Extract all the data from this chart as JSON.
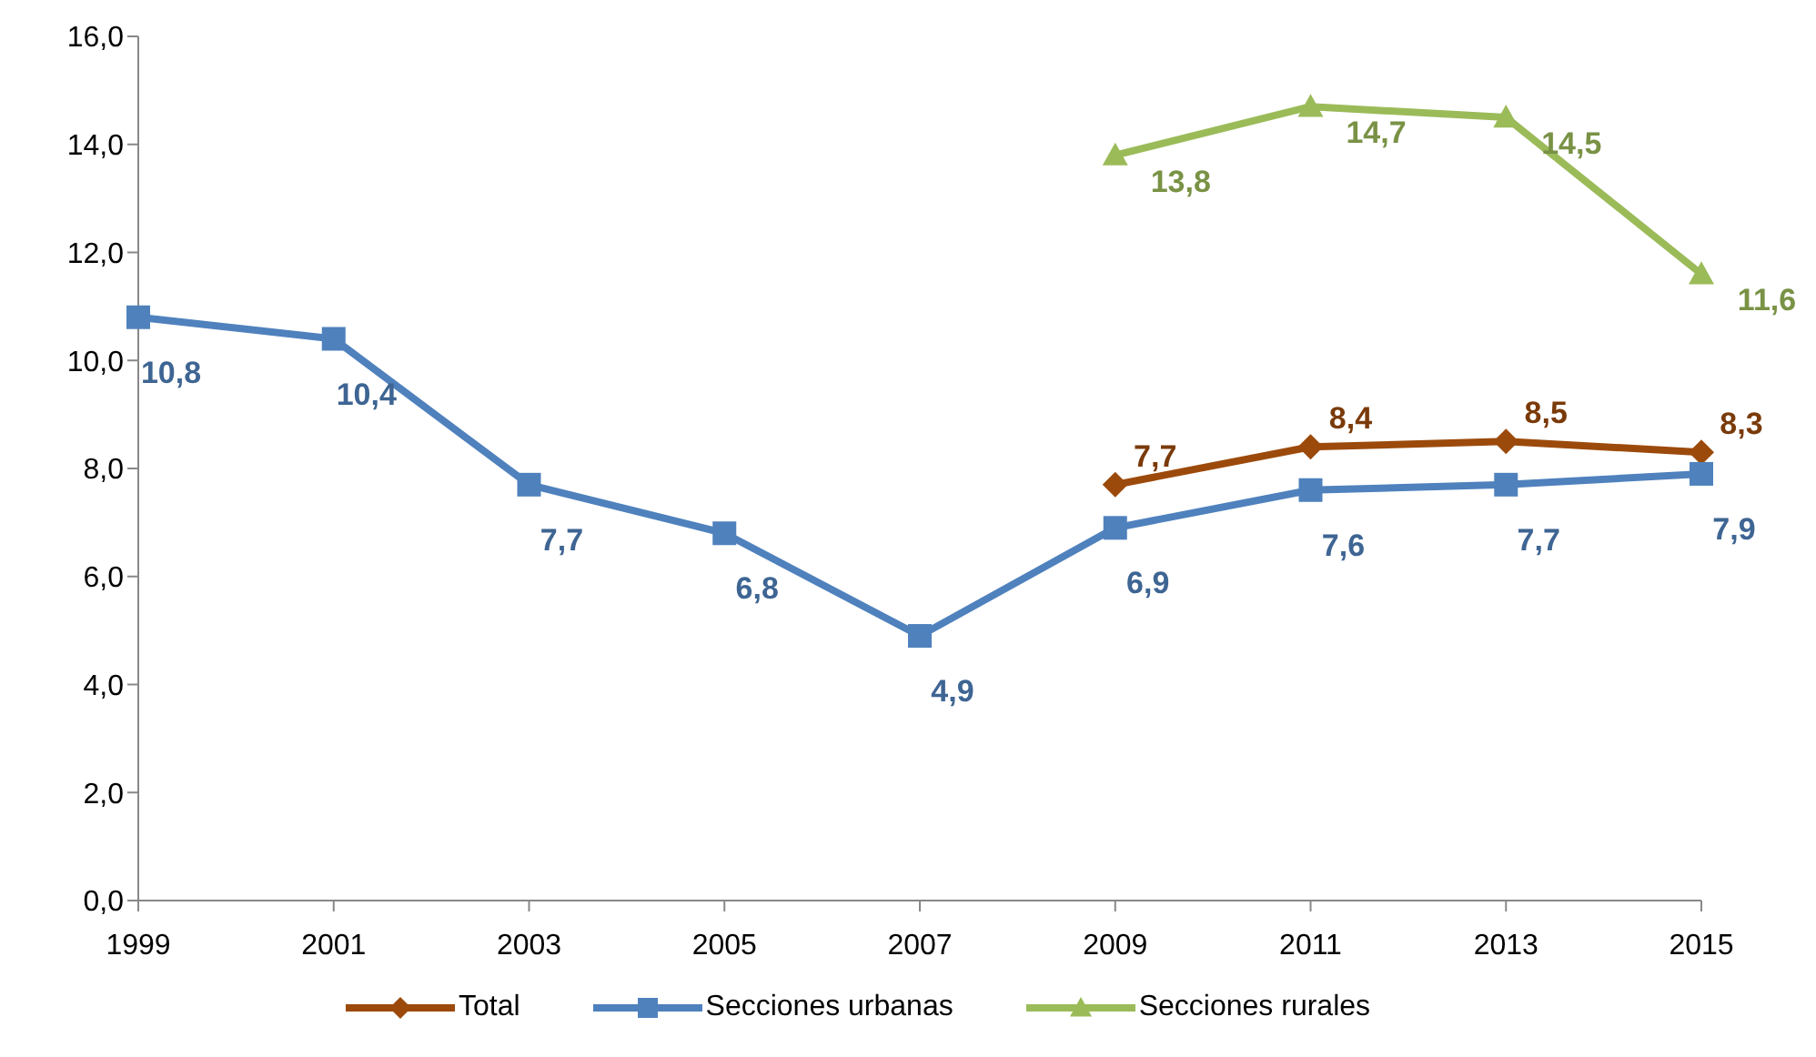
{
  "chart_data": {
    "type": "line",
    "categories": [
      "1999",
      "2001",
      "2003",
      "2005",
      "2007",
      "2009",
      "2011",
      "2013",
      "2015"
    ],
    "ylim": [
      0,
      16
    ],
    "yticks": [
      {
        "value": 0,
        "label": "0,0"
      },
      {
        "value": 2,
        "label": "2,0"
      },
      {
        "value": 4,
        "label": "4,0"
      },
      {
        "value": 6,
        "label": "6,0"
      },
      {
        "value": 8,
        "label": "8,0"
      },
      {
        "value": 10,
        "label": "10,0"
      },
      {
        "value": 12,
        "label": "12,0"
      },
      {
        "value": 14,
        "label": "14,0"
      },
      {
        "value": 16,
        "label": "16,0"
      }
    ],
    "grid": false,
    "legend": "bottom",
    "line_style": "solid",
    "series": [
      {
        "name": "Total",
        "color": "#9c4a0b",
        "marker": "diamond",
        "values": [
          null,
          null,
          null,
          null,
          null,
          7.7,
          8.4,
          8.5,
          8.3
        ],
        "value_labels": [
          null,
          null,
          null,
          null,
          null,
          "7,7",
          "8,4",
          "8,5",
          "8,3"
        ]
      },
      {
        "name": "Secciones urbanas",
        "color": "#4f81bd",
        "marker": "square",
        "values": [
          10.8,
          10.4,
          7.7,
          6.8,
          4.9,
          6.9,
          7.6,
          7.7,
          7.9
        ],
        "value_labels": [
          "10,8",
          "10,4",
          "7,7",
          "6,8",
          "4,9",
          "6,9",
          "7,6",
          "7,7",
          "7,9"
        ]
      },
      {
        "name": "Secciones rurales",
        "color": "#9bbb59",
        "marker": "triangle",
        "values": [
          null,
          null,
          null,
          null,
          null,
          13.8,
          14.7,
          14.5,
          11.6
        ],
        "value_labels": [
          null,
          null,
          null,
          null,
          null,
          "13,8",
          "14,7",
          "14,5",
          "11,6"
        ]
      }
    ]
  }
}
